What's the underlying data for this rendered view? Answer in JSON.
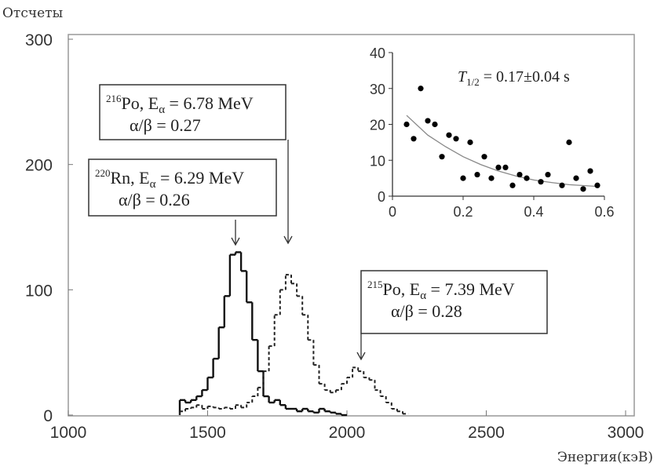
{
  "chart_data": [
    {
      "type": "histogram",
      "y_label": "Отсчеты",
      "x_label": "Энергия(кэВ)",
      "xlim": [
        1000,
        3000
      ],
      "ylim": [
        0,
        300
      ],
      "xticks": [
        1000,
        1500,
        2000,
        2500,
        3000
      ],
      "yticks": [
        0,
        100,
        200,
        300
      ],
      "series": [
        {
          "style": "solid",
          "color": "#111111",
          "bins": [
            1400,
            1420,
            1440,
            1460,
            1480,
            1500,
            1520,
            1540,
            1560,
            1580,
            1600,
            1620,
            1640,
            1660,
            1680,
            1700,
            1720,
            1740,
            1760,
            1780,
            1800,
            1820,
            1840,
            1860,
            1880,
            1900,
            1920,
            1940,
            1960,
            1980,
            2000
          ],
          "values": [
            12,
            10,
            12,
            15,
            20,
            30,
            45,
            70,
            95,
            128,
            130,
            115,
            90,
            60,
            35,
            15,
            10,
            12,
            8,
            5,
            5,
            3,
            5,
            3,
            2,
            5,
            3,
            2,
            1,
            0
          ]
        },
        {
          "style": "dashed",
          "color": "#222222",
          "bins": [
            1400,
            1420,
            1440,
            1460,
            1480,
            1500,
            1520,
            1540,
            1560,
            1580,
            1600,
            1620,
            1640,
            1660,
            1680,
            1700,
            1720,
            1740,
            1760,
            1780,
            1800,
            1820,
            1840,
            1860,
            1880,
            1900,
            1920,
            1940,
            1960,
            1980,
            2000,
            2020,
            2040,
            2060,
            2080,
            2100,
            2120,
            2140,
            2160,
            2180,
            2200,
            2220
          ],
          "values": [
            3,
            5,
            6,
            8,
            5,
            7,
            6,
            5,
            6,
            5,
            8,
            6,
            10,
            15,
            22,
            35,
            55,
            80,
            100,
            112,
            105,
            95,
            80,
            60,
            40,
            25,
            20,
            18,
            20,
            25,
            30,
            38,
            35,
            30,
            28,
            20,
            15,
            10,
            5,
            3,
            1
          ]
        }
      ],
      "annotations": [
        {
          "mass": "216",
          "element": "Po, E",
          "sub": "α",
          "energy": " = 6.78 MeV",
          "ratio": "α/β = 0.27"
        },
        {
          "mass": "220",
          "element": "Rn, E",
          "sub": "α",
          "energy": " = 6.29 MeV",
          "ratio": "α/β = 0.26"
        },
        {
          "mass": "215",
          "element": "Po, E",
          "sub": "α",
          "energy": " = 7.39 MeV",
          "ratio": "α/β = 0.28"
        }
      ]
    },
    {
      "type": "scatter",
      "color": "#000000",
      "xlim": [
        0,
        0.6
      ],
      "ylim": [
        0,
        40
      ],
      "xticks": [
        {
          "value": 0,
          "label": "0"
        },
        {
          "value": 0.2,
          "label": "0.2"
        },
        {
          "value": 0.4,
          "label": "0.4"
        },
        {
          "value": 0.6,
          "label": "0.6"
        }
      ],
      "yticks": [
        0,
        10,
        20,
        30,
        40
      ],
      "annotation": {
        "symbol": "T",
        "sub": "1/2",
        "text": " = 0.17±0.04 s"
      },
      "x": [
        0.04,
        0.06,
        0.08,
        0.1,
        0.12,
        0.14,
        0.16,
        0.18,
        0.2,
        0.22,
        0.24,
        0.26,
        0.28,
        0.3,
        0.32,
        0.34,
        0.36,
        0.38,
        0.42,
        0.44,
        0.48,
        0.5,
        0.52,
        0.54,
        0.56,
        0.58
      ],
      "values": [
        20,
        16,
        30,
        21,
        20,
        11,
        17,
        16,
        5,
        15,
        6,
        11,
        5,
        8,
        8,
        3,
        6,
        5,
        4,
        6,
        3,
        15,
        5,
        2,
        7,
        3
      ],
      "fit": {
        "color": "#888888",
        "x": [
          0.04,
          0.1,
          0.15,
          0.2,
          0.25,
          0.3,
          0.35,
          0.4,
          0.45,
          0.5,
          0.55,
          0.58
        ],
        "values": [
          22.5,
          17,
          13.8,
          11,
          8.8,
          7,
          5.6,
          4.5,
          3.8,
          3.2,
          2.9,
          2.7
        ]
      }
    }
  ]
}
